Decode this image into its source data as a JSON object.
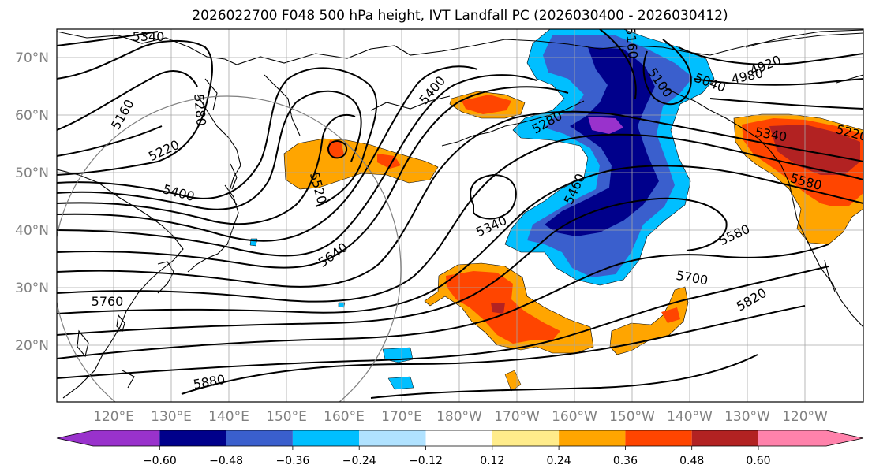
{
  "title": "2026022700 F048 500 hPa height, IVT Landfall PC (2026030400 - 2026030412)",
  "map": {
    "lat_labels": [
      "70°N",
      "60°N",
      "50°N",
      "40°N",
      "30°N",
      "20°N"
    ],
    "lon_labels": [
      "120°E",
      "130°E",
      "140°E",
      "150°E",
      "160°E",
      "170°E",
      "180°W",
      "170°W",
      "160°W",
      "150°W",
      "140°W",
      "130°W",
      "120°W"
    ],
    "contour_labels": [
      "5340",
      "5160",
      "5280",
      "5220",
      "5400",
      "5520",
      "5640",
      "5760",
      "5880",
      "5400",
      "5280",
      "5340",
      "5460",
      "5160",
      "5100",
      "5040",
      "4980",
      "4920",
      "5340",
      "5220",
      "5580",
      "5580",
      "5700",
      "5820"
    ]
  },
  "colorbar": {
    "colors": [
      "#9932cc",
      "#00008b",
      "#3a5fcd",
      "#00bfff",
      "#b0e2ff",
      "#ffffff",
      "#ffec8b",
      "#ffa500",
      "#ff4500",
      "#b22222",
      "#ff82ab"
    ],
    "tick_labels": [
      "−0.60",
      "−0.48",
      "−0.36",
      "−0.24",
      "−0.12",
      "0.12",
      "0.24",
      "0.36",
      "0.48",
      "0.60"
    ]
  }
}
